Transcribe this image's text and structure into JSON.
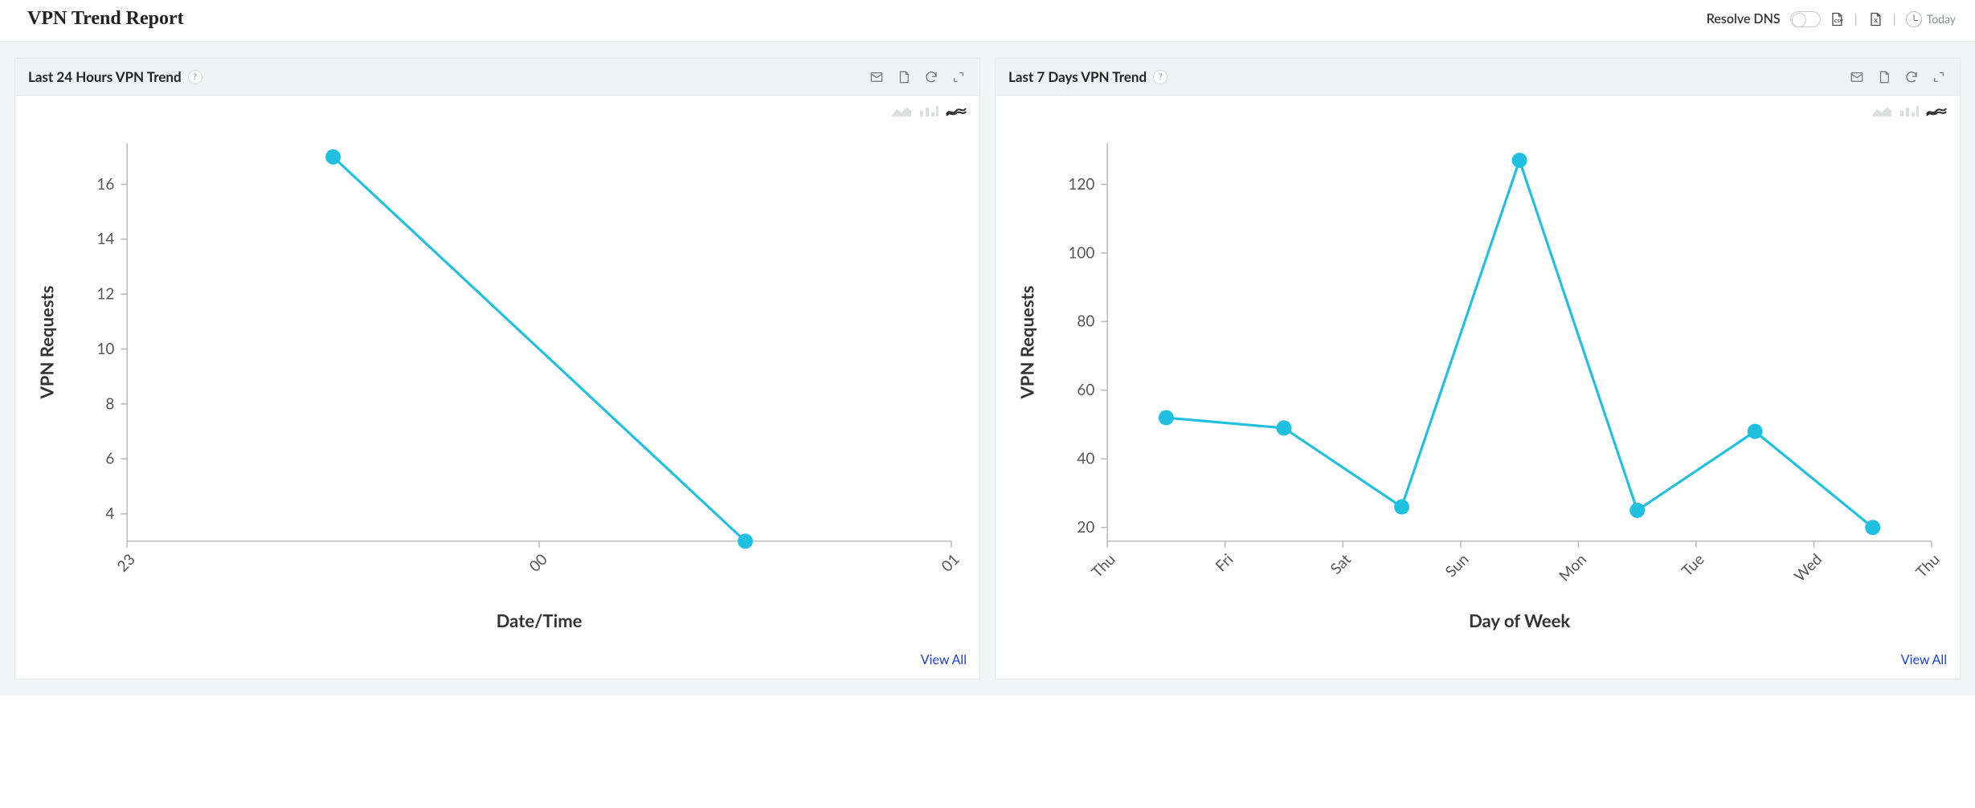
{
  "page": {
    "title": "VPN Trend Report",
    "resolve_dns_label": "Resolve DNS",
    "time_range_label": "Today"
  },
  "panels": [
    {
      "title": "Last 24 Hours VPN Trend",
      "view_all_label": "View All",
      "chart": {
        "type": "line",
        "ylabel": "VPN Requests",
        "xlabel": "Date/Time",
        "categories": [
          "23",
          "00",
          "01"
        ],
        "x_positions": [
          0,
          1,
          2
        ],
        "data_x": [
          0.5,
          1.5
        ],
        "data_y": [
          17,
          3
        ],
        "yticks": [
          4,
          6,
          8,
          10,
          12,
          14,
          16
        ],
        "ylim": [
          3,
          17.5
        ],
        "line_color": "#1fc0e0",
        "marker_color": "#1fc0e0",
        "line_width": 2,
        "marker_radius": 6,
        "grid_color": "#e6e8e9",
        "axis_color": "#b9bcbe",
        "background_color": "#ffffff",
        "xtick_rotate": -45
      }
    },
    {
      "title": "Last 7 Days VPN Trend",
      "view_all_label": "View All",
      "chart": {
        "type": "line",
        "ylabel": "VPN Requests",
        "xlabel": "Day of Week",
        "categories": [
          "Thu",
          "Fri",
          "Sat",
          "Sun",
          "Mon",
          "Tue",
          "Wed",
          "Thu"
        ],
        "x_positions": [
          0,
          1,
          2,
          3,
          4,
          5,
          6,
          7
        ],
        "data_x": [
          0.5,
          1.5,
          2.5,
          3.5,
          4.5,
          5.5,
          6.5
        ],
        "data_y": [
          52,
          49,
          26,
          127,
          25,
          48,
          20
        ],
        "yticks": [
          20,
          40,
          60,
          80,
          100,
          120
        ],
        "ylim": [
          16,
          132
        ],
        "line_color": "#1fc0e0",
        "marker_color": "#1fc0e0",
        "line_width": 2,
        "marker_radius": 6,
        "grid_color": "#e6e8e9",
        "axis_color": "#b9bcbe",
        "background_color": "#ffffff",
        "xtick_rotate": -45
      }
    }
  ]
}
